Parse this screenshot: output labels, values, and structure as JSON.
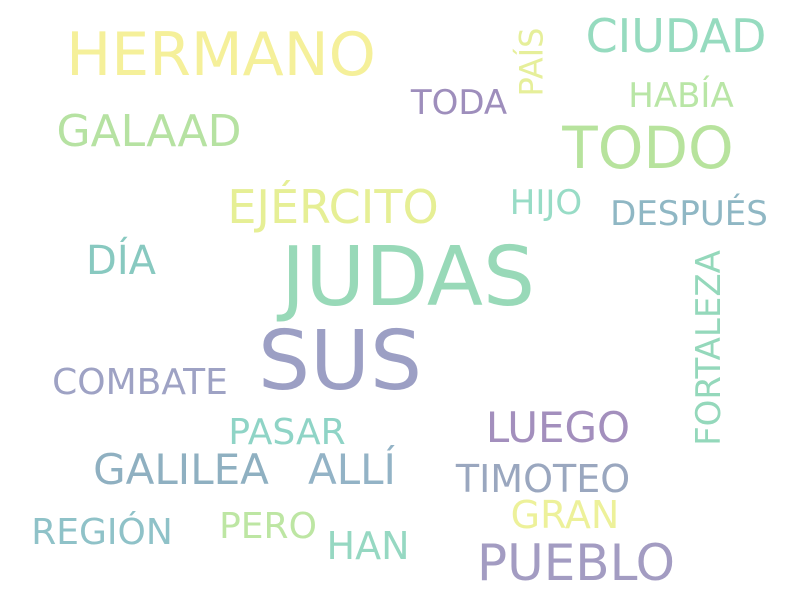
{
  "background_color": "#ffffff",
  "words": [
    {
      "text": "JUDAS",
      "weight": 1.0,
      "color": "#98d9b8"
    },
    {
      "text": "SUS",
      "weight": 0.96,
      "color": "#9c9fc4"
    },
    {
      "text": "HERMANO",
      "weight": 0.68,
      "color": "#f5f09a"
    },
    {
      "text": "TODO",
      "weight": 0.66,
      "color": "#b7e39d"
    },
    {
      "text": "PUEBLO",
      "weight": 0.56,
      "color": "#a39cc2"
    },
    {
      "text": "EJÉRCITO",
      "weight": 0.52,
      "color": "#e6ef95"
    },
    {
      "text": "CIUDAD",
      "weight": 0.52,
      "color": "#96dbbf"
    },
    {
      "text": "GALAAD",
      "weight": 0.5,
      "color": "#b6e2a2"
    },
    {
      "text": "GALILEA",
      "weight": 0.48,
      "color": "#8fb0c1"
    },
    {
      "text": "ALLÍ",
      "weight": 0.48,
      "color": "#93b3c6"
    },
    {
      "text": "LUEGO",
      "weight": 0.48,
      "color": "#a38fbd"
    },
    {
      "text": "DÍA",
      "weight": 0.46,
      "color": "#88c9c0"
    },
    {
      "text": "TIMOTEO",
      "weight": 0.44,
      "color": "#9aa7bf"
    },
    {
      "text": "FORTALEZA",
      "weight": 0.42,
      "color": "#94d8bb"
    },
    {
      "text": "GRAN",
      "weight": 0.42,
      "color": "#edf19a"
    },
    {
      "text": "HAN",
      "weight": 0.42,
      "color": "#96d8c2"
    },
    {
      "text": "PERO",
      "weight": 0.4,
      "color": "#bde6a3"
    },
    {
      "text": "COMBATE",
      "weight": 0.4,
      "color": "#9ea2c4"
    },
    {
      "text": "REGIÓN",
      "weight": 0.4,
      "color": "#8fc2c8"
    },
    {
      "text": "PASAR",
      "weight": 0.4,
      "color": "#8fd4c6"
    },
    {
      "text": "DESPUÉS",
      "weight": 0.38,
      "color": "#8fb7c4"
    },
    {
      "text": "HIJO",
      "weight": 0.38,
      "color": "#98dcc6"
    },
    {
      "text": "TODA",
      "weight": 0.38,
      "color": "#9e8ebc"
    },
    {
      "text": "HABÍA",
      "weight": 0.36,
      "color": "#b9e6a6"
    },
    {
      "text": "PAÍS",
      "weight": 0.36,
      "color": "#e6ef9a"
    }
  ]
}
